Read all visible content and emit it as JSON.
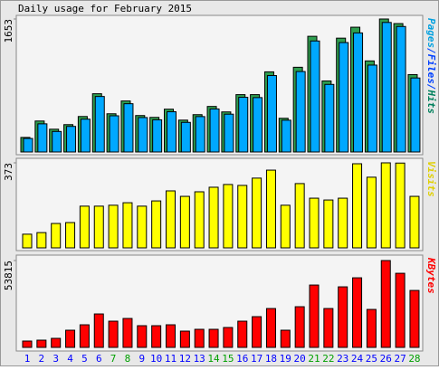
{
  "chart_data": [
    {
      "type": "bar",
      "title": "Daily usage for February 2015",
      "label_parts": [
        {
          "text": "Pages",
          "color": "#00a0e0"
        },
        {
          "text": "/",
          "color": "#0040ff"
        },
        {
          "text": "Files",
          "color": "#0040ff"
        },
        {
          "text": "/",
          "color": "#0040ff"
        },
        {
          "text": "Hits",
          "color": "#00805c"
        }
      ],
      "ylim": [
        0,
        1653
      ],
      "yticks": [
        1653
      ],
      "series": [
        {
          "name": "Hits",
          "color": "#2e9e4f",
          "values": [
            181,
            385,
            283,
            340,
            441,
            724,
            475,
            634,
            453,
            430,
            532,
            396,
            464,
            566,
            498,
            713,
            713,
            996,
            419,
            1053,
            1438,
            883,
            1415,
            1551,
            1132,
            1653,
            1596,
            962
          ]
        },
        {
          "name": "Files",
          "color": "#00a8ff",
          "values": [
            168,
            350,
            255,
            318,
            408,
            690,
            450,
            600,
            428,
            400,
            500,
            368,
            440,
            535,
            470,
            680,
            676,
            950,
            395,
            1000,
            1380,
            840,
            1360,
            1480,
            1080,
            1610,
            1560,
            920
          ]
        }
      ]
    },
    {
      "type": "bar",
      "label": "Visits",
      "label_color": "#e0d000",
      "ylim": [
        0,
        373
      ],
      "yticks": [
        373
      ],
      "series": [
        {
          "name": "Visits",
          "color": "#ffff00",
          "values": [
            60,
            67,
            107,
            111,
            183,
            183,
            187,
            198,
            183,
            206,
            250,
            226,
            246,
            266,
            278,
            274,
            306,
            341,
            187,
            282,
            218,
            210,
            218,
            369,
            310,
            373,
            372,
            226
          ]
        }
      ]
    },
    {
      "type": "bar",
      "label": "KBytes",
      "label_color": "#ff0000",
      "ylim": [
        0,
        53815
      ],
      "yticks": [
        53815
      ],
      "series": [
        {
          "name": "KBytes",
          "color": "#ff0000",
          "values": [
            3920,
            4480,
            5600,
            10640,
            14000,
            20720,
            16240,
            17920,
            13440,
            13440,
            14000,
            10080,
            11200,
            11200,
            12320,
            16240,
            19040,
            24080,
            10640,
            25200,
            38640,
            24080,
            37520,
            43120,
            23520,
            53815,
            45920,
            35280
          ]
        }
      ],
      "categories": [
        "1",
        "2",
        "3",
        "4",
        "5",
        "6",
        "7",
        "8",
        "9",
        "10",
        "11",
        "12",
        "13",
        "14",
        "15",
        "16",
        "17",
        "18",
        "19",
        "20",
        "21",
        "22",
        "23",
        "24",
        "25",
        "26",
        "27",
        "28"
      ],
      "category_colors": [
        "#0000ff",
        "#0000ff",
        "#0000ff",
        "#0000ff",
        "#0000ff",
        "#0000ff",
        "#00a000",
        "#00a000",
        "#0000ff",
        "#0000ff",
        "#0000ff",
        "#0000ff",
        "#0000ff",
        "#00a000",
        "#00a000",
        "#0000ff",
        "#0000ff",
        "#0000ff",
        "#0000ff",
        "#0000ff",
        "#00a000",
        "#00a000",
        "#0000ff",
        "#0000ff",
        "#0000ff",
        "#0000ff",
        "#0000ff",
        "#00a000"
      ]
    }
  ]
}
